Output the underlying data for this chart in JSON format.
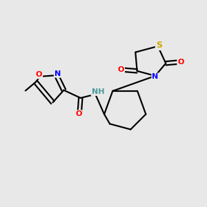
{
  "background_color": "#e8e8e8",
  "atom_colors": {
    "C": "#000000",
    "N": "#0000ff",
    "O": "#ff0000",
    "S": "#ccaa00",
    "H": "#4a9a9a"
  },
  "bond_color": "#000000",
  "bond_width": 1.6,
  "figsize": [
    3.0,
    3.0
  ],
  "dpi": 100
}
